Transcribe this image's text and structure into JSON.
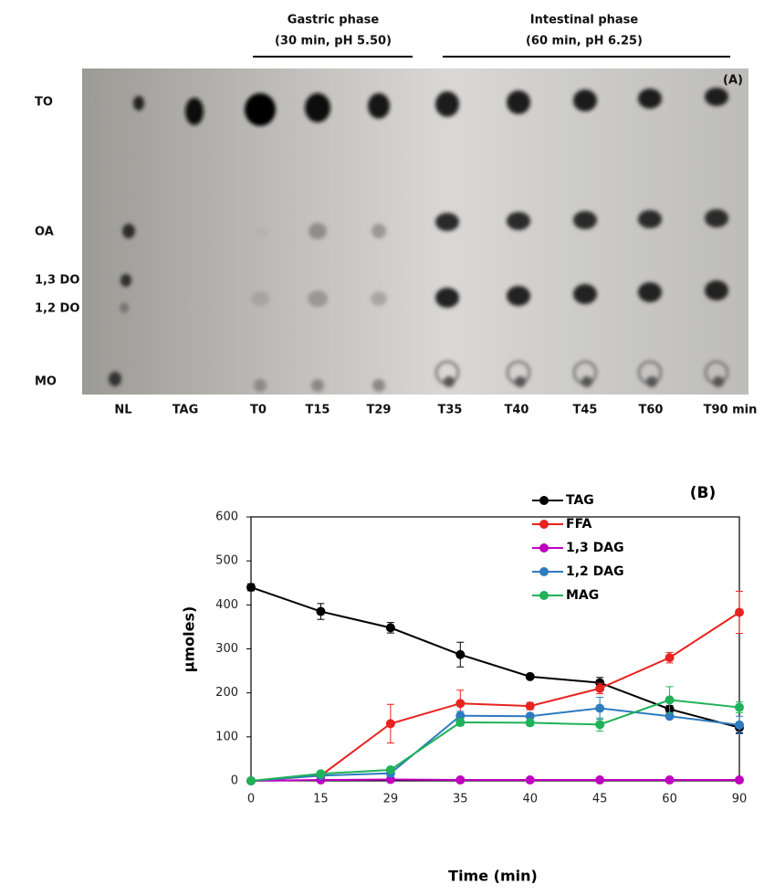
{
  "panel_a": {
    "panel_label": "(A)",
    "phases": [
      {
        "title": "Gastric phase",
        "subtitle": "(30 min, pH 5.50)"
      },
      {
        "title": "Intestinal phase",
        "subtitle": "(60 min, pH 6.25)"
      }
    ],
    "row_labels": [
      "TO",
      "OA",
      "1,3 DO",
      "1,2 DO",
      "MO"
    ],
    "lane_labels": [
      "NL",
      "TAG",
      "T0",
      "T15",
      "T29",
      "T35",
      "T40",
      "T45",
      "T60",
      "T90 min"
    ]
  },
  "chart_data": {
    "type": "line",
    "panel_label": "(B)",
    "x_label": "Time (min)",
    "y_label": "µmoles)",
    "categories": [
      "0",
      "15",
      "29",
      "35",
      "40",
      "45",
      "60",
      "90"
    ],
    "ylim": [
      0,
      600
    ],
    "yticks": [
      0,
      100,
      200,
      300,
      400,
      500,
      600
    ],
    "legend": "upper right",
    "series": [
      {
        "name": "TAG",
        "color": "#000000",
        "values": [
          440,
          385,
          348,
          287,
          237,
          223,
          163,
          121
        ],
        "errors": [
          8,
          18,
          12,
          28,
          4,
          12,
          8,
          12
        ]
      },
      {
        "name": "FFA",
        "color": "#e8221f",
        "values": [
          0,
          12,
          130,
          176,
          170,
          210,
          280,
          383
        ],
        "errors": [
          0,
          3,
          44,
          30,
          8,
          12,
          12,
          48
        ]
      },
      {
        "name": "1,3 DAG",
        "color": "#c000c0",
        "values": [
          0,
          2,
          3,
          2,
          2,
          2,
          2,
          2
        ]
      },
      {
        "name": "1,2 DAG",
        "color": "#2e7bbf",
        "values": [
          0,
          12,
          17,
          148,
          147,
          165,
          147,
          127
        ],
        "errors": [
          0,
          3,
          5,
          10,
          5,
          25,
          6,
          20
        ]
      },
      {
        "name": "MAG",
        "color": "#1fb259",
        "values": [
          0,
          16,
          25,
          133,
          132,
          128,
          184,
          167
        ],
        "errors": [
          0,
          4,
          5,
          8,
          5,
          15,
          30,
          12
        ]
      }
    ]
  }
}
